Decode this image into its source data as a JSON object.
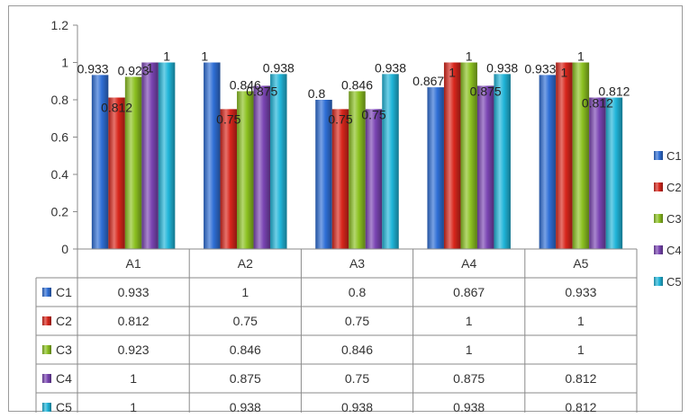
{
  "chart_data": {
    "type": "bar",
    "categories": [
      "A1",
      "A2",
      "A3",
      "A4",
      "A5"
    ],
    "series": [
      {
        "name": "C1",
        "values": [
          0.933,
          1,
          0.8,
          0.867,
          0.933
        ],
        "color": "#2f6fd6"
      },
      {
        "name": "C2",
        "values": [
          0.812,
          0.75,
          0.75,
          1,
          1
        ],
        "color": "#d8261c"
      },
      {
        "name": "C3",
        "values": [
          0.923,
          0.846,
          0.846,
          1,
          1
        ],
        "color": "#8cc121"
      },
      {
        "name": "C4",
        "values": [
          1,
          0.875,
          0.75,
          0.875,
          0.812
        ],
        "color": "#7a45b3"
      },
      {
        "name": "C5",
        "values": [
          1,
          0.938,
          0.938,
          0.938,
          0.812
        ],
        "color": "#20b5d9"
      }
    ],
    "y_ticks": [
      "0",
      "0.2",
      "0.4",
      "0.6",
      "0.8",
      "1",
      "1.2"
    ],
    "ylim": [
      0,
      1.2
    ],
    "legend_position": "right",
    "data_table": true,
    "grid": false
  }
}
